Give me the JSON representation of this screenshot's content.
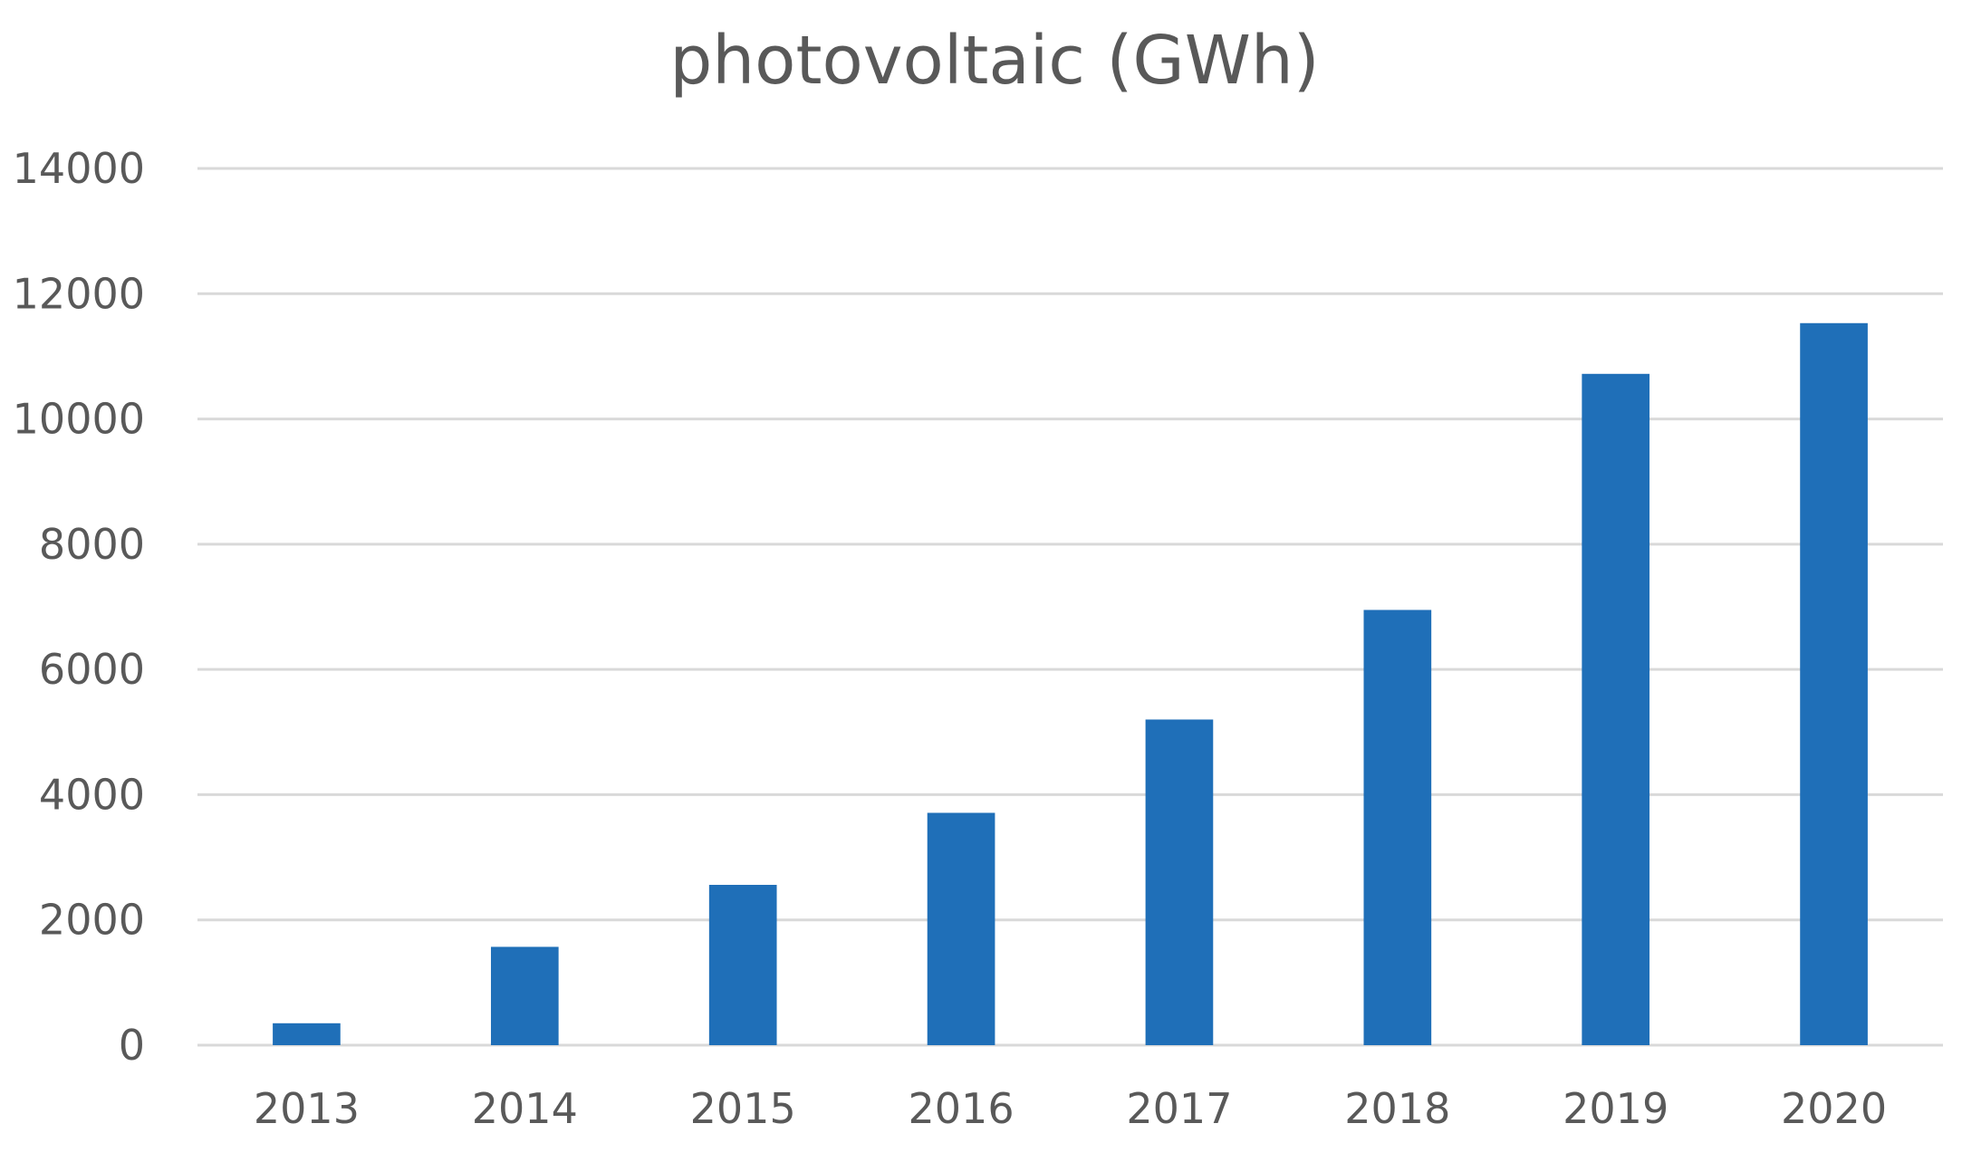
{
  "chart_data": {
    "type": "bar",
    "title": "photovoltaic (GWh)",
    "xlabel": "",
    "ylabel": "",
    "categories": [
      "2013",
      "2014",
      "2015",
      "2016",
      "2017",
      "2018",
      "2019",
      "2020"
    ],
    "values": [
      350,
      1570,
      2560,
      3710,
      5200,
      6950,
      10720,
      11530
    ],
    "yticks": [
      "0",
      "2000",
      "4000",
      "6000",
      "8000",
      "10000",
      "12000",
      "14000"
    ],
    "ylim": [
      0,
      14000
    ],
    "grid": true,
    "legend": "none",
    "bar_color": "#1f6fb8"
  }
}
